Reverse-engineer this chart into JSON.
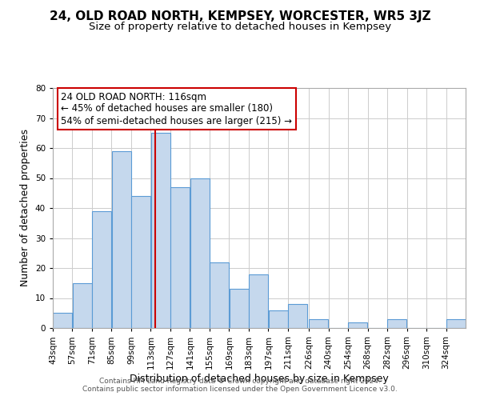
{
  "title": "24, OLD ROAD NORTH, KEMPSEY, WORCESTER, WR5 3JZ",
  "subtitle": "Size of property relative to detached houses in Kempsey",
  "xlabel": "Distribution of detached houses by size in Kempsey",
  "ylabel": "Number of detached properties",
  "bin_labels": [
    "43sqm",
    "57sqm",
    "71sqm",
    "85sqm",
    "99sqm",
    "113sqm",
    "127sqm",
    "141sqm",
    "155sqm",
    "169sqm",
    "183sqm",
    "197sqm",
    "211sqm",
    "226sqm",
    "240sqm",
    "254sqm",
    "268sqm",
    "282sqm",
    "296sqm",
    "310sqm",
    "324sqm"
  ],
  "bar_heights": [
    5,
    15,
    39,
    59,
    44,
    65,
    47,
    50,
    22,
    13,
    18,
    6,
    8,
    3,
    0,
    2,
    0,
    3,
    0,
    0,
    3
  ],
  "bar_color": "#c5d8ed",
  "bar_edge_color": "#5b9bd5",
  "property_line_x": 116,
  "bin_edges": [
    43,
    57,
    71,
    85,
    99,
    113,
    127,
    141,
    155,
    169,
    183,
    197,
    211,
    226,
    240,
    254,
    268,
    282,
    296,
    310,
    324,
    338
  ],
  "annotation_title": "24 OLD ROAD NORTH: 116sqm",
  "annotation_line1": "← 45% of detached houses are smaller (180)",
  "annotation_line2": "54% of semi-detached houses are larger (215) →",
  "annotation_box_color": "#ffffff",
  "annotation_box_edge": "#cc0000",
  "vline_color": "#cc0000",
  "ylim": [
    0,
    80
  ],
  "yticks": [
    0,
    10,
    20,
    30,
    40,
    50,
    60,
    70,
    80
  ],
  "footer1": "Contains HM Land Registry data © Crown copyright and database right 2024.",
  "footer2": "Contains public sector information licensed under the Open Government Licence v3.0.",
  "background_color": "#ffffff",
  "grid_color": "#cccccc",
  "title_fontsize": 11,
  "subtitle_fontsize": 9.5,
  "axis_label_fontsize": 9,
  "tick_fontsize": 7.5,
  "annotation_fontsize": 8.5,
  "footer_fontsize": 6.5
}
